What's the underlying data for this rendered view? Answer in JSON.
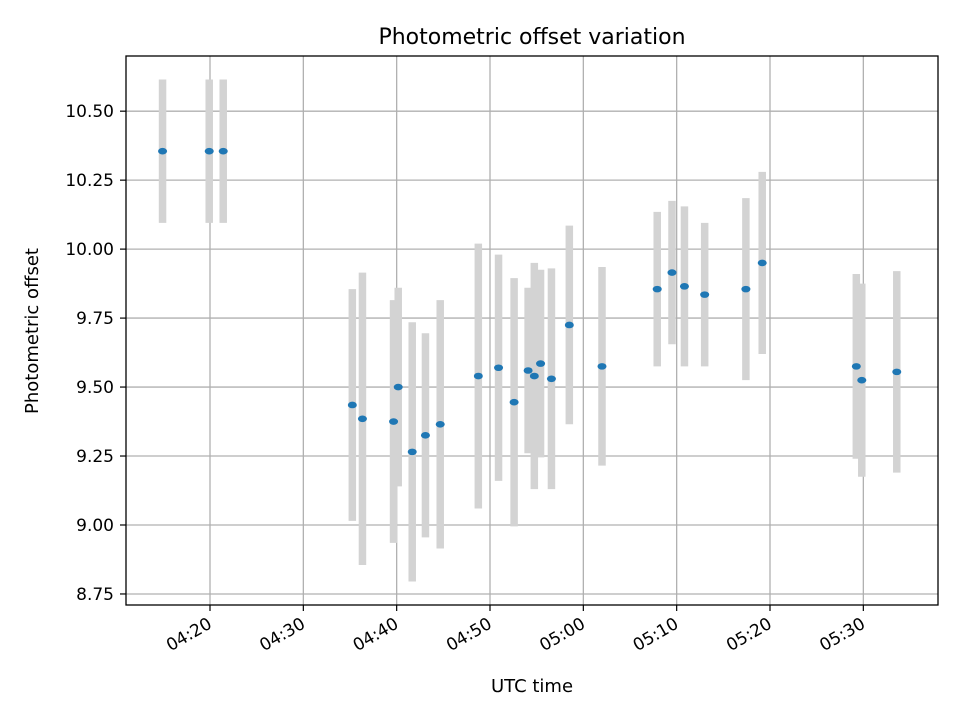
{
  "chart_data": {
    "type": "scatter",
    "title": "Photometric offset variation",
    "xlabel": "UTC time",
    "ylabel": "Photometric offset",
    "xlim": [
      "04:11",
      "05:38"
    ],
    "ylim": [
      8.71,
      10.7
    ],
    "grid": true,
    "colors": {
      "point": "#1f77b4",
      "errorbar": "#d3d3d3",
      "grid": "#b0b0b0"
    },
    "x_ticks": [
      "04:20",
      "04:30",
      "04:40",
      "04:50",
      "05:00",
      "05:10",
      "05:20",
      "05:30"
    ],
    "y_ticks": [
      "8.75",
      "9.00",
      "9.25",
      "9.50",
      "9.75",
      "10.00",
      "10.25",
      "10.50"
    ],
    "series": [
      {
        "points": [
          {
            "x": "04:14:55",
            "y": 10.355,
            "yerr": 0.26
          },
          {
            "x": "04:19:55",
            "y": 10.355,
            "yerr": 0.26
          },
          {
            "x": "04:21:25",
            "y": 10.355,
            "yerr": 0.26
          },
          {
            "x": "04:35:15",
            "y": 9.435,
            "yerr": 0.42
          },
          {
            "x": "04:36:20",
            "y": 9.385,
            "yerr": 0.53
          },
          {
            "x": "04:39:40",
            "y": 9.375,
            "yerr": 0.44
          },
          {
            "x": "04:40:10",
            "y": 9.5,
            "yerr": 0.36
          },
          {
            "x": "04:41:40",
            "y": 9.265,
            "yerr": 0.47
          },
          {
            "x": "04:43:05",
            "y": 9.325,
            "yerr": 0.37
          },
          {
            "x": "04:44:40",
            "y": 9.365,
            "yerr": 0.45
          },
          {
            "x": "04:48:45",
            "y": 9.54,
            "yerr": 0.48
          },
          {
            "x": "04:50:55",
            "y": 9.57,
            "yerr": 0.41
          },
          {
            "x": "04:52:35",
            "y": 9.445,
            "yerr": 0.45
          },
          {
            "x": "04:54:05",
            "y": 9.56,
            "yerr": 0.3
          },
          {
            "x": "04:54:45",
            "y": 9.54,
            "yerr": 0.41
          },
          {
            "x": "04:55:25",
            "y": 9.585,
            "yerr": 0.34
          },
          {
            "x": "04:56:35",
            "y": 9.53,
            "yerr": 0.4
          },
          {
            "x": "04:58:30",
            "y": 9.725,
            "yerr": 0.36
          },
          {
            "x": "05:02:00",
            "y": 9.575,
            "yerr": 0.36
          },
          {
            "x": "05:07:55",
            "y": 9.855,
            "yerr": 0.28
          },
          {
            "x": "05:09:30",
            "y": 9.915,
            "yerr": 0.26
          },
          {
            "x": "05:10:50",
            "y": 9.865,
            "yerr": 0.29
          },
          {
            "x": "05:13:00",
            "y": 9.835,
            "yerr": 0.26
          },
          {
            "x": "05:17:25",
            "y": 9.855,
            "yerr": 0.33
          },
          {
            "x": "05:19:10",
            "y": 9.95,
            "yerr": 0.33
          },
          {
            "x": "05:29:15",
            "y": 9.575,
            "yerr": 0.335
          },
          {
            "x": "05:29:50",
            "y": 9.525,
            "yerr": 0.35
          },
          {
            "x": "05:33:35",
            "y": 9.555,
            "yerr": 0.365
          }
        ]
      }
    ]
  }
}
